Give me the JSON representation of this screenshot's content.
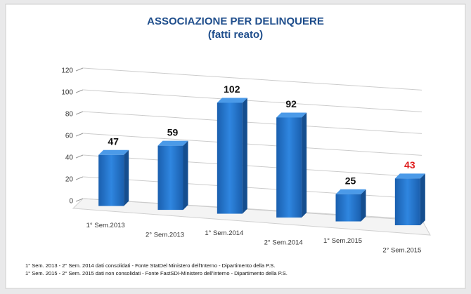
{
  "chart_data": {
    "type": "bar3d",
    "title": "ASSOCIAZIONE PER DELINQUERE",
    "subtitle": "(fatti reato)",
    "categories": [
      "1° Sem.2013",
      "2° Sem.2013",
      "1° Sem.2014",
      "2° Sem.2014",
      "1° Sem.2015",
      "2° Sem.2015"
    ],
    "values": [
      47,
      59,
      102,
      92,
      25,
      43
    ],
    "color": "#1f6fc4",
    "value_label_colors": [
      "#111111",
      "#111111",
      "#111111",
      "#111111",
      "#111111",
      "#e02020"
    ],
    "ylim": [
      0,
      120
    ],
    "yticks": [
      0,
      20,
      40,
      60,
      80,
      100,
      120
    ],
    "grid": true,
    "notes": [
      "1° Sem. 2013 - 2° Sem. 2014 dati consolidati - Fonte StatDel Ministero dell'Interno - Dipartimento della P.S.",
      "1° Sem. 2015 - 2° Sem. 2015 dati non consolidati - Fonte FastSDI-Ministero dell'Interno - Dipartimento della P.S."
    ]
  }
}
